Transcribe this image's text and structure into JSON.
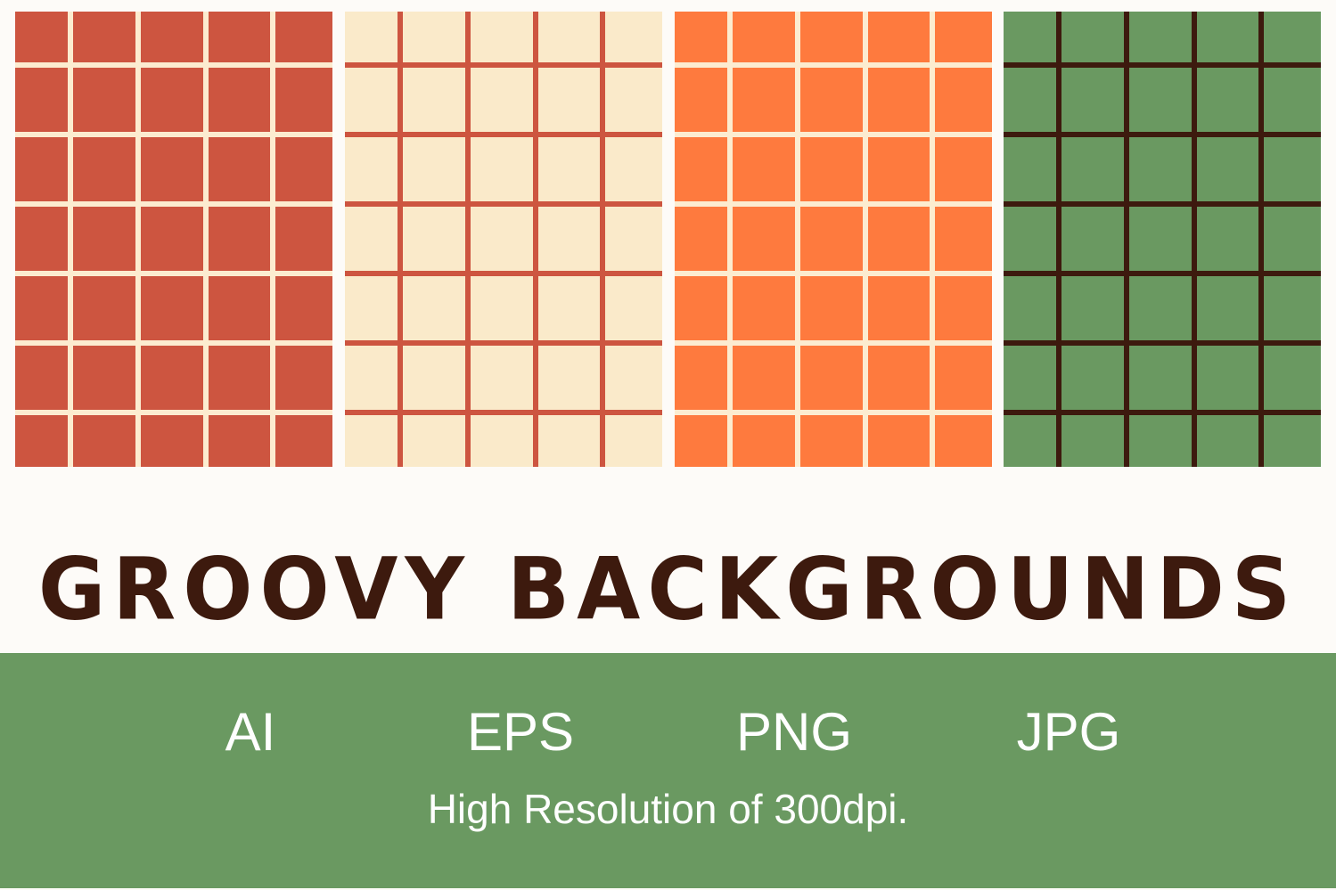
{
  "panels": [
    {
      "name": "red-grid",
      "background": "#cd5540",
      "line_color": "#fcecd0"
    },
    {
      "name": "cream-grid",
      "background": "#faeaca",
      "line_color": "#cd5540"
    },
    {
      "name": "orange-grid",
      "background": "#fe7a3e",
      "line_color": "#fcecd0"
    },
    {
      "name": "green-grid",
      "background": "#6a9961",
      "line_color": "#3d1a0e"
    }
  ],
  "title": "GROOVY  BACKGROUNDS",
  "formats": [
    "AI",
    "EPS",
    "PNG",
    "JPG"
  ],
  "subtitle": "High Resolution of 300dpi.",
  "colors": {
    "page": "#fdfbf8",
    "band": "#6a9961",
    "title": "#3d1a0e"
  }
}
